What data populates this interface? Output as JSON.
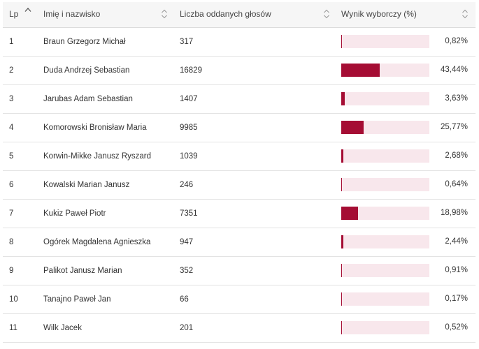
{
  "headers": {
    "lp": "Lp",
    "name": "Imię i nazwisko",
    "votes": "Liczba oddanych głosów",
    "result": "Wynik wyborczy (%)"
  },
  "colors": {
    "bar_fill": "#a50d34",
    "bar_track": "#f8e7ec"
  },
  "rows": [
    {
      "lp": "1",
      "name": "Braun Grzegorz Michał",
      "votes": "317",
      "pct_label": "0,82%",
      "pct": 0.82
    },
    {
      "lp": "2",
      "name": "Duda Andrzej Sebastian",
      "votes": "16829",
      "pct_label": "43,44%",
      "pct": 43.44
    },
    {
      "lp": "3",
      "name": "Jarubas Adam Sebastian",
      "votes": "1407",
      "pct_label": "3,63%",
      "pct": 3.63
    },
    {
      "lp": "4",
      "name": "Komorowski Bronisław Maria",
      "votes": "9985",
      "pct_label": "25,77%",
      "pct": 25.77
    },
    {
      "lp": "5",
      "name": "Korwin-Mikke Janusz Ryszard",
      "votes": "1039",
      "pct_label": "2,68%",
      "pct": 2.68
    },
    {
      "lp": "6",
      "name": "Kowalski Marian Janusz",
      "votes": "246",
      "pct_label": "0,64%",
      "pct": 0.64
    },
    {
      "lp": "7",
      "name": "Kukiz Paweł Piotr",
      "votes": "7351",
      "pct_label": "18,98%",
      "pct": 18.98
    },
    {
      "lp": "8",
      "name": "Ogórek Magdalena Agnieszka",
      "votes": "947",
      "pct_label": "2,44%",
      "pct": 2.44
    },
    {
      "lp": "9",
      "name": "Palikot Janusz Marian",
      "votes": "352",
      "pct_label": "0,91%",
      "pct": 0.91
    },
    {
      "lp": "10",
      "name": "Tanajno Paweł Jan",
      "votes": "66",
      "pct_label": "0,17%",
      "pct": 0.17
    },
    {
      "lp": "11",
      "name": "Wilk Jacek",
      "votes": "201",
      "pct_label": "0,52%",
      "pct": 0.52
    }
  ]
}
